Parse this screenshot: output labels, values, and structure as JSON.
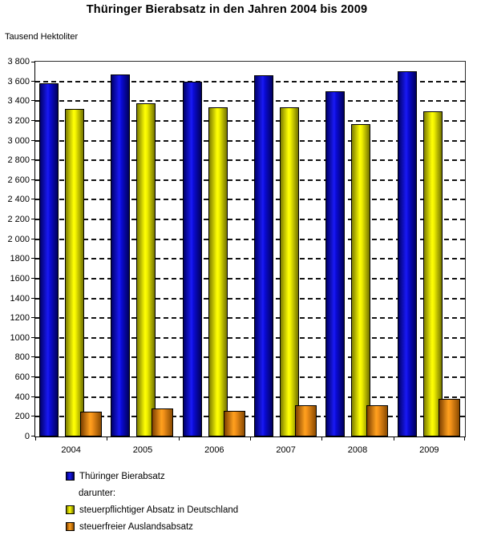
{
  "title": "Thüringer Bierabsatz in den Jahren 2004 bis 2009",
  "y_axis_label": "Tausend Hektoliter",
  "colors": {
    "blue_bright": "#1a1af5",
    "blue_dark": "#00006a",
    "yellow_bright": "#ffff05",
    "yellow_dark": "#7d7d00",
    "orange_bright": "#ffa01e",
    "orange_dark": "#7c3f00",
    "bar_border": "#000000",
    "grid": "#000000",
    "background": "#ffffff"
  },
  "chart_data": {
    "type": "bar",
    "title": "Thüringer Bierabsatz in den Jahren 2004 bis 2009",
    "ylabel": "Tausend Hektoliter",
    "xlabel": "",
    "categories": [
      "2004",
      "2005",
      "2006",
      "2007",
      "2008",
      "2009"
    ],
    "series": [
      {
        "name": "Thüringer Bierabsatz",
        "color_key": "blue",
        "values": [
          3580,
          3670,
          3600,
          3660,
          3500,
          3700
        ]
      },
      {
        "name": "steuerpflichtiger Absatz in Deutschland",
        "color_key": "yellow",
        "values": [
          3320,
          3380,
          3340,
          3340,
          3170,
          3300
        ]
      },
      {
        "name": "steuerfreier Auslandsabsatz",
        "color_key": "orange",
        "values": [
          250,
          285,
          260,
          315,
          315,
          380
        ]
      }
    ],
    "ylim": [
      0,
      3800
    ],
    "ytick_step": 200,
    "ytick_labels": [
      "0",
      "200",
      "400",
      "600",
      "800",
      "1000",
      "1200",
      "1400",
      "1600",
      "1800",
      "2 000",
      "2 200",
      "2 400",
      "2 600",
      "2 800",
      "3 000",
      "3 200",
      "3 400",
      "3 600",
      "3 800"
    ],
    "grid": "horizontal dashed",
    "legend_position": "bottom-left"
  },
  "legend": {
    "items": [
      {
        "swatch": "blue",
        "label": "Thüringer Bierabsatz"
      },
      {
        "swatch": null,
        "label": "darunter:"
      },
      {
        "swatch": "yellow",
        "label": "steuerpflichtiger Absatz in Deutschland"
      },
      {
        "swatch": "orange",
        "label": "steuerfreier Auslandsabsatz"
      }
    ]
  }
}
